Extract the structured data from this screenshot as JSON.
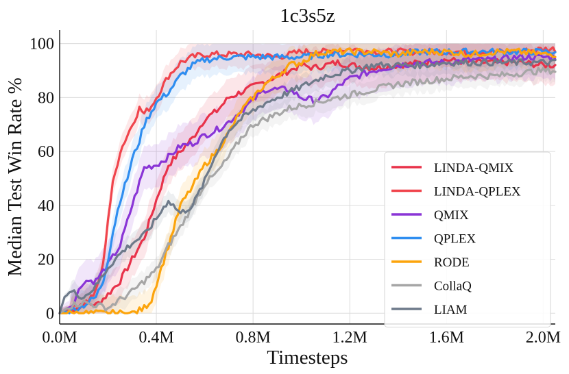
{
  "chart_data": {
    "type": "line",
    "title": "1c3s5z",
    "xlabel": "Timesteps",
    "ylabel": "Median Test Win Rate %",
    "xlim": [
      0,
      2.05
    ],
    "ylim": [
      -4,
      105
    ],
    "x_unit_suffix": "M",
    "x_ticks": [
      0.0,
      0.4,
      0.8,
      1.2,
      1.6,
      2.0
    ],
    "x_tick_labels": [
      "0.0M",
      "0.4M",
      "0.8M",
      "1.2M",
      "1.6M",
      "2.0M"
    ],
    "y_ticks": [
      0,
      20,
      40,
      60,
      80,
      100
    ],
    "y_tick_labels": [
      "0",
      "20",
      "40",
      "60",
      "80",
      "100"
    ],
    "grid": true,
    "legend_position": "bottom-right",
    "series": [
      {
        "name": "LINDA-QMIX",
        "color": "#e8324a",
        "band": 7,
        "x": [
          0,
          0.05,
          0.1,
          0.15,
          0.2,
          0.25,
          0.3,
          0.35,
          0.4,
          0.45,
          0.5,
          0.55,
          0.6,
          0.65,
          0.7,
          0.75,
          0.8,
          0.85,
          0.9,
          0.95,
          1.0,
          1.05,
          1.1,
          1.15,
          1.2,
          1.3,
          1.4,
          1.5,
          1.6,
          1.7,
          1.8,
          1.9,
          2.0,
          2.05
        ],
        "y": [
          0,
          1,
          4,
          3,
          7,
          12,
          20,
          28,
          42,
          55,
          60,
          65,
          72,
          75,
          80,
          82,
          84,
          86,
          88,
          90,
          92,
          91,
          92,
          93,
          92,
          91,
          92,
          93,
          94,
          93,
          93,
          93,
          92,
          92
        ]
      },
      {
        "name": "LINDA-QPLEX",
        "color": "#f0444c",
        "band": 5,
        "x": [
          0,
          0.05,
          0.1,
          0.15,
          0.18,
          0.2,
          0.22,
          0.25,
          0.28,
          0.3,
          0.33,
          0.35,
          0.38,
          0.4,
          0.45,
          0.5,
          0.55,
          0.6,
          0.7,
          0.8,
          0.9,
          1.0,
          1.1,
          1.2,
          1.3,
          1.4,
          1.5,
          1.6,
          1.7,
          1.8,
          1.9,
          2.0,
          2.05
        ],
        "y": [
          0,
          2,
          3,
          8,
          18,
          35,
          48,
          60,
          66,
          70,
          76,
          74,
          77,
          80,
          88,
          93,
          95,
          96,
          96,
          96,
          95,
          97,
          97,
          98,
          97,
          97,
          97,
          97,
          97,
          97,
          97,
          98,
          98
        ]
      },
      {
        "name": "QMIX",
        "color": "#8a35d6",
        "band": 8,
        "x": [
          0,
          0.05,
          0.1,
          0.15,
          0.2,
          0.25,
          0.3,
          0.35,
          0.4,
          0.45,
          0.5,
          0.55,
          0.6,
          0.65,
          0.7,
          0.75,
          0.8,
          0.85,
          0.9,
          0.95,
          1.0,
          1.05,
          1.1,
          1.15,
          1.2,
          1.3,
          1.4,
          1.5,
          1.6,
          1.7,
          1.8,
          1.9,
          2.0,
          2.05
        ],
        "y": [
          0,
          3,
          12,
          12,
          18,
          25,
          40,
          54,
          55,
          58,
          62,
          63,
          66,
          68,
          71,
          75,
          79,
          83,
          83,
          83,
          80,
          79,
          80,
          84,
          87,
          90,
          92,
          93,
          93,
          94,
          94,
          95,
          95,
          95
        ]
      },
      {
        "name": "QPLEX",
        "color": "#2f8ef0",
        "band": 6,
        "x": [
          0,
          0.05,
          0.1,
          0.15,
          0.18,
          0.2,
          0.22,
          0.25,
          0.28,
          0.3,
          0.33,
          0.35,
          0.38,
          0.4,
          0.45,
          0.5,
          0.55,
          0.6,
          0.7,
          0.8,
          0.9,
          1.0,
          1.1,
          1.2,
          1.3,
          1.4,
          1.5,
          1.6,
          1.7,
          1.8,
          1.9,
          2.0,
          2.05
        ],
        "y": [
          0,
          1,
          3,
          6,
          12,
          20,
          30,
          42,
          50,
          57,
          64,
          70,
          75,
          78,
          82,
          88,
          92,
          94,
          95,
          95,
          95,
          95,
          96,
          96,
          96,
          96,
          97,
          97,
          97,
          97,
          97,
          97,
          97
        ]
      },
      {
        "name": "RODE",
        "color": "#fca40c",
        "band": 6,
        "x": [
          0,
          0.05,
          0.1,
          0.15,
          0.2,
          0.25,
          0.3,
          0.33,
          0.35,
          0.38,
          0.4,
          0.45,
          0.5,
          0.55,
          0.6,
          0.65,
          0.7,
          0.75,
          0.8,
          0.85,
          0.9,
          0.95,
          1.0,
          1.05,
          1.1,
          1.15,
          1.2,
          1.3,
          1.4,
          1.5,
          1.6,
          1.7,
          1.8,
          1.9,
          2.0,
          2.05
        ],
        "y": [
          0,
          0,
          0,
          0,
          0,
          0,
          0,
          1,
          2,
          5,
          11,
          25,
          40,
          47,
          55,
          60,
          67,
          75,
          80,
          85,
          88,
          92,
          93,
          96,
          97,
          97,
          97,
          97,
          96,
          97,
          97,
          96,
          97,
          97,
          96,
          96
        ]
      },
      {
        "name": "CollaQ",
        "color": "#a6a6a6",
        "band": 4,
        "x": [
          0,
          0.05,
          0.1,
          0.15,
          0.2,
          0.25,
          0.3,
          0.35,
          0.4,
          0.45,
          0.5,
          0.55,
          0.6,
          0.65,
          0.7,
          0.75,
          0.8,
          0.85,
          0.9,
          0.95,
          1.0,
          1.1,
          1.2,
          1.3,
          1.4,
          1.5,
          1.6,
          1.7,
          1.8,
          1.9,
          2.0,
          2.05
        ],
        "y": [
          0,
          3,
          4,
          3,
          2,
          5,
          8,
          12,
          16,
          25,
          32,
          40,
          48,
          52,
          58,
          65,
          70,
          72,
          74,
          76,
          77,
          79,
          81,
          83,
          85,
          86,
          87,
          88,
          88,
          89,
          90,
          90
        ]
      },
      {
        "name": "LIAM",
        "color": "#6e7a8a",
        "band": 4,
        "x": [
          0,
          0.02,
          0.05,
          0.1,
          0.15,
          0.2,
          0.25,
          0.3,
          0.35,
          0.4,
          0.45,
          0.5,
          0.55,
          0.6,
          0.65,
          0.7,
          0.75,
          0.8,
          0.85,
          0.9,
          0.95,
          1.0,
          1.05,
          1.1,
          1.15,
          1.2,
          1.3,
          1.4,
          1.5,
          1.6,
          1.7,
          1.8,
          1.9,
          2.0,
          2.05
        ],
        "y": [
          0,
          6,
          8,
          6,
          10,
          17,
          22,
          26,
          29,
          35,
          42,
          37,
          40,
          49,
          60,
          68,
          72,
          75,
          78,
          80,
          82,
          84,
          86,
          88,
          89,
          90,
          92,
          92,
          92,
          93,
          93,
          93,
          93,
          93,
          93
        ]
      }
    ]
  }
}
